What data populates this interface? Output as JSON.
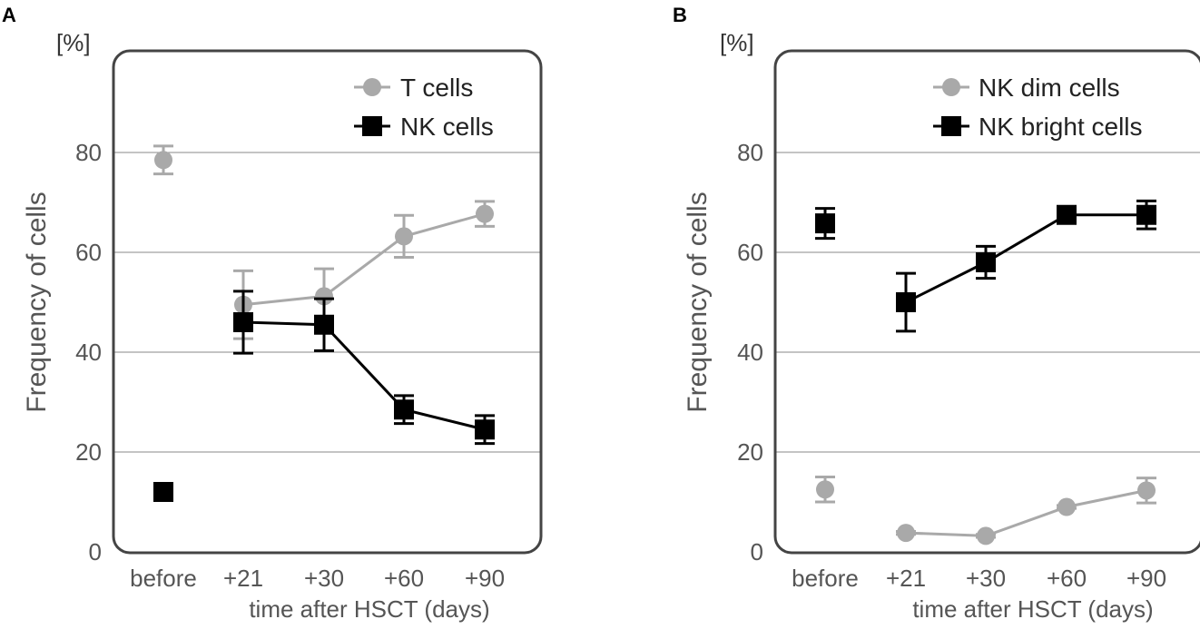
{
  "chart_data": [
    {
      "panel": "A",
      "type": "line",
      "unit_label": "[%]",
      "ylabel": "Frequency of cells",
      "xlabel": "time after HSCT (days)",
      "categories": [
        "before",
        "+21",
        "+30",
        "+60",
        "+90"
      ],
      "ylim": [
        0,
        100
      ],
      "yticks": [
        0,
        20,
        40,
        60,
        80
      ],
      "grid": true,
      "legend_position": "top-right",
      "series": [
        {
          "name": "T cells",
          "marker": "circle",
          "color": "#a9a9a9",
          "values": [
            78.5,
            49.5,
            51.2,
            63.2,
            67.7
          ],
          "errors": [
            2.8,
            6.8,
            5.5,
            4.2,
            2.5
          ],
          "connect_from_index": 1
        },
        {
          "name": "NK cells",
          "marker": "square",
          "color": "#000000",
          "values": [
            12.0,
            46.0,
            45.5,
            28.5,
            24.5
          ],
          "errors": [
            1.5,
            6.2,
            5.2,
            2.8,
            2.8
          ],
          "connect_from_index": 1
        }
      ]
    },
    {
      "panel": "B",
      "type": "line",
      "unit_label": "[%]",
      "ylabel": "Frequency of cells",
      "xlabel": "time after HSCT (days)",
      "categories": [
        "before",
        "+21",
        "+30",
        "+60",
        "+90"
      ],
      "ylim": [
        0,
        100
      ],
      "yticks": [
        0,
        20,
        40,
        60,
        80
      ],
      "grid": true,
      "legend_position": "top-right",
      "series": [
        {
          "name": "NK dim cells",
          "marker": "circle",
          "color": "#a9a9a9",
          "values": [
            12.5,
            3.8,
            3.2,
            9.0,
            12.3
          ],
          "errors": [
            2.5,
            0.3,
            0.3,
            0.3,
            2.5
          ],
          "connect_from_index": 1
        },
        {
          "name": "NK bright cells",
          "marker": "square",
          "color": "#000000",
          "values": [
            65.8,
            50.0,
            58.0,
            67.5,
            67.5
          ],
          "errors": [
            3.0,
            5.8,
            3.2,
            1.5,
            2.8
          ],
          "connect_from_index": 1
        }
      ]
    }
  ]
}
